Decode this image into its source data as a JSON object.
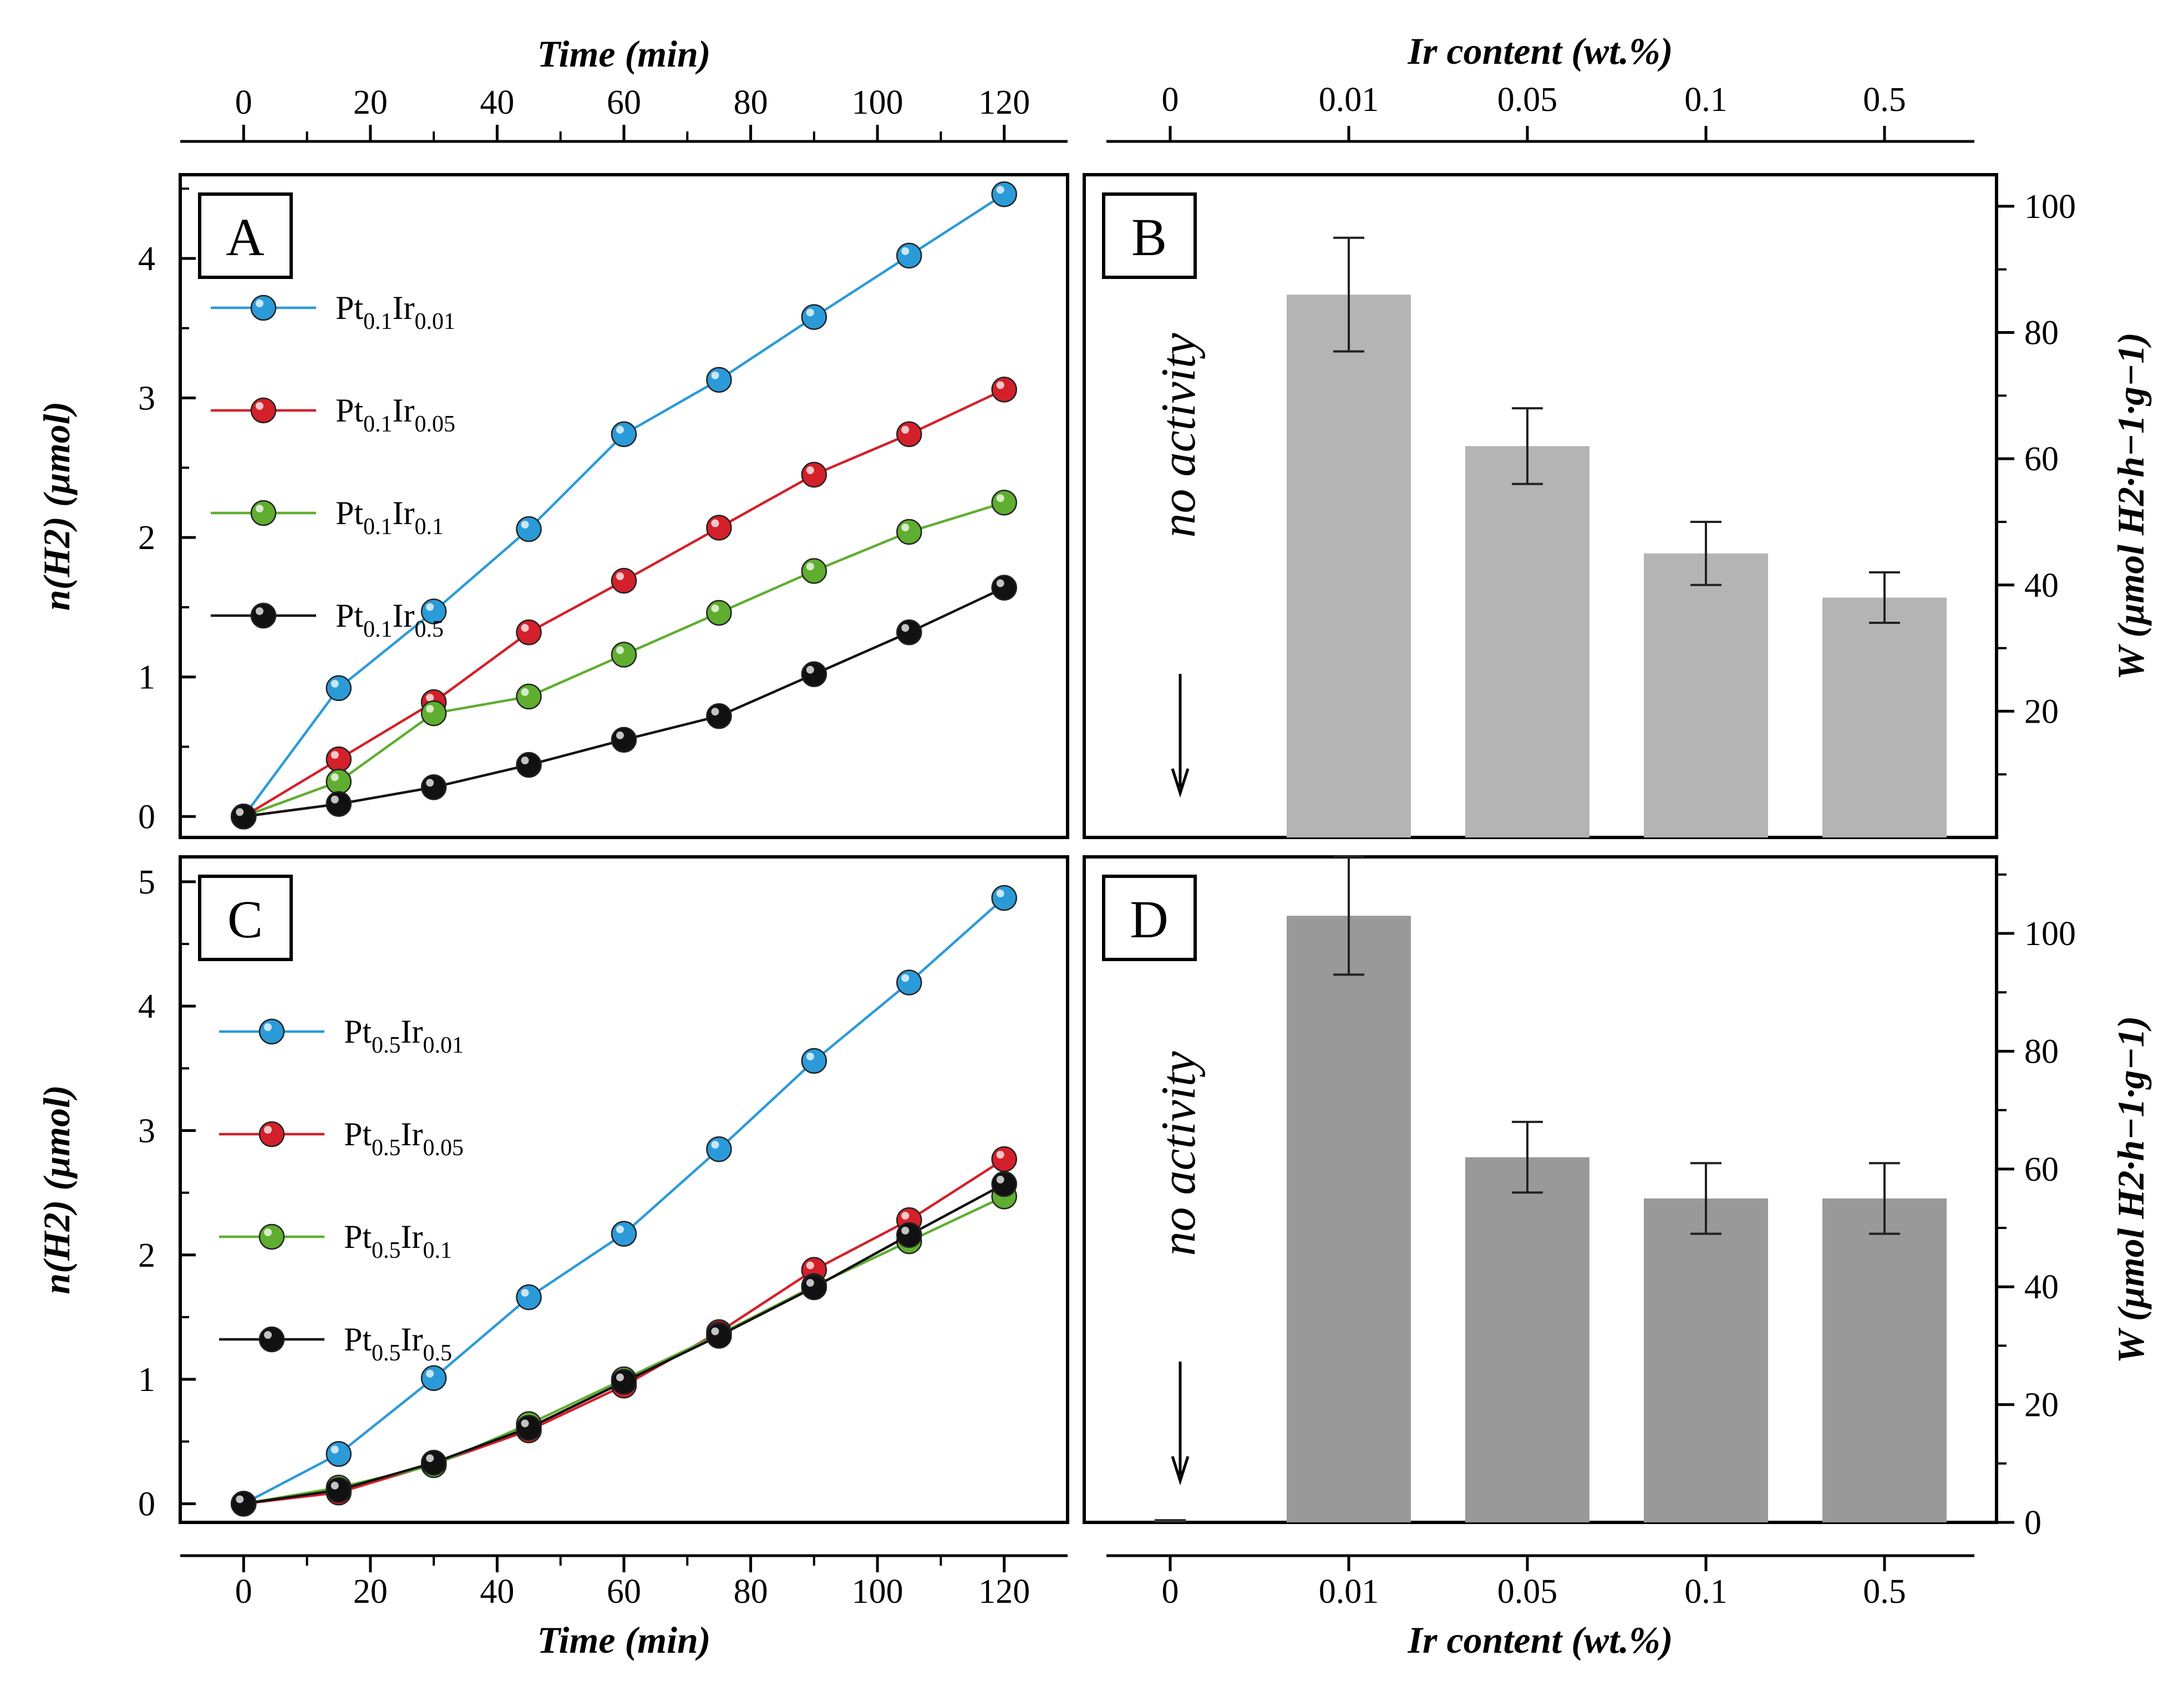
{
  "chart_data": [
    {
      "panel": "A",
      "type": "line",
      "xlabel": "Time (min)",
      "ylabel": "n(H2) (µmol)",
      "xlim": [
        -10,
        130
      ],
      "ylim": [
        -0.15,
        4.6
      ],
      "xticks": [
        0,
        20,
        40,
        60,
        80,
        100,
        120
      ],
      "yticks": [
        0,
        1,
        2,
        3,
        4
      ],
      "grid": false,
      "legend_position": "upper-left",
      "series": [
        {
          "label_main": "Pt",
          "label_sub1": "0.1",
          "label_main2": "Ir",
          "label_sub2": "0.01",
          "color": "#2b9ad8",
          "x": [
            0,
            15,
            30,
            45,
            60,
            75,
            90,
            105,
            120
          ],
          "y": [
            0,
            0.92,
            1.47,
            2.06,
            2.74,
            3.13,
            3.58,
            4.02,
            4.46
          ]
        },
        {
          "label_main": "Pt",
          "label_sub1": "0.1",
          "label_main2": "Ir",
          "label_sub2": "0.05",
          "color": "#d4202a",
          "x": [
            0,
            15,
            30,
            45,
            60,
            75,
            90,
            105,
            120
          ],
          "y": [
            0,
            0.41,
            0.82,
            1.32,
            1.69,
            2.07,
            2.45,
            2.74,
            3.06
          ]
        },
        {
          "label_main": "Pt",
          "label_sub1": "0.1",
          "label_main2": "Ir",
          "label_sub2": "0.1",
          "color": "#5fae2f",
          "x": [
            0,
            15,
            30,
            45,
            60,
            75,
            90,
            105,
            120
          ],
          "y": [
            0,
            0.25,
            0.74,
            0.86,
            1.16,
            1.46,
            1.76,
            2.04,
            2.25
          ]
        },
        {
          "label_main": "Pt",
          "label_sub1": "0.1",
          "label_main2": "Ir",
          "label_sub2": "0.5",
          "color": "#111111",
          "x": [
            0,
            15,
            30,
            45,
            60,
            75,
            90,
            105,
            120
          ],
          "y": [
            0,
            0.09,
            0.21,
            0.37,
            0.55,
            0.72,
            1.02,
            1.32,
            1.64
          ]
        }
      ]
    },
    {
      "panel": "B",
      "type": "bar",
      "xlabel": "Ir content (wt.%)",
      "ylabel": "W (µmol H2·h−1·g−1)",
      "categories": [
        "0",
        "0.01",
        "0.05",
        "0.1",
        "0.5"
      ],
      "values": [
        0,
        86,
        62,
        45,
        38
      ],
      "errors": [
        0,
        9,
        6,
        5,
        4
      ],
      "ylim": [
        0,
        105
      ],
      "yticks": [
        20,
        40,
        60,
        80,
        100
      ],
      "bar_color": "#b4b4b4",
      "annotation": "no activity"
    },
    {
      "panel": "C",
      "type": "line",
      "xlabel": "Time (min)",
      "ylabel": "n(H2) (µmol)",
      "xlim": [
        -10,
        130
      ],
      "ylim": [
        -0.15,
        5.2
      ],
      "xticks": [
        0,
        20,
        40,
        60,
        80,
        100,
        120
      ],
      "yticks": [
        0,
        1,
        2,
        3,
        4,
        5
      ],
      "grid": false,
      "legend_position": "upper-left",
      "series": [
        {
          "label_main": "Pt",
          "label_sub1": "0.5",
          "label_main2": "Ir",
          "label_sub2": "0.01",
          "color": "#2b9ad8",
          "x": [
            0,
            15,
            30,
            45,
            60,
            75,
            90,
            105,
            120
          ],
          "y": [
            0,
            0.4,
            1.01,
            1.66,
            2.17,
            2.85,
            3.56,
            4.19,
            4.87
          ]
        },
        {
          "label_main": "Pt",
          "label_sub1": "0.5",
          "label_main2": "Ir",
          "label_sub2": "0.05",
          "color": "#d4202a",
          "x": [
            0,
            15,
            30,
            45,
            60,
            75,
            90,
            105,
            120
          ],
          "y": [
            0,
            0.09,
            0.32,
            0.59,
            0.95,
            1.38,
            1.88,
            2.28,
            2.77
          ]
        },
        {
          "label_main": "Pt",
          "label_sub1": "0.5",
          "label_main2": "Ir",
          "label_sub2": "0.1",
          "color": "#5fae2f",
          "x": [
            0,
            15,
            30,
            45,
            60,
            75,
            90,
            105,
            120
          ],
          "y": [
            0,
            0.13,
            0.31,
            0.64,
            1.0,
            1.36,
            1.75,
            2.11,
            2.47
          ]
        },
        {
          "label_main": "Pt",
          "label_sub1": "0.5",
          "label_main2": "Ir",
          "label_sub2": "0.5",
          "color": "#111111",
          "x": [
            0,
            15,
            30,
            45,
            60,
            75,
            90,
            105,
            120
          ],
          "y": [
            0,
            0.11,
            0.33,
            0.61,
            0.98,
            1.35,
            1.74,
            2.16,
            2.57
          ]
        }
      ]
    },
    {
      "panel": "D",
      "type": "bar",
      "xlabel": "Ir content (wt.%)",
      "ylabel": "W (µmol H2·h−1·g−1)",
      "categories": [
        "0",
        "0.01",
        "0.05",
        "0.1",
        "0.5"
      ],
      "values": [
        0,
        103,
        62,
        55,
        55
      ],
      "errors": [
        0,
        10,
        6,
        6,
        6
      ],
      "ylim": [
        0,
        113
      ],
      "yticks": [
        0,
        20,
        40,
        60,
        80,
        100
      ],
      "bar_color": "#999999",
      "annotation": "no activity"
    }
  ]
}
